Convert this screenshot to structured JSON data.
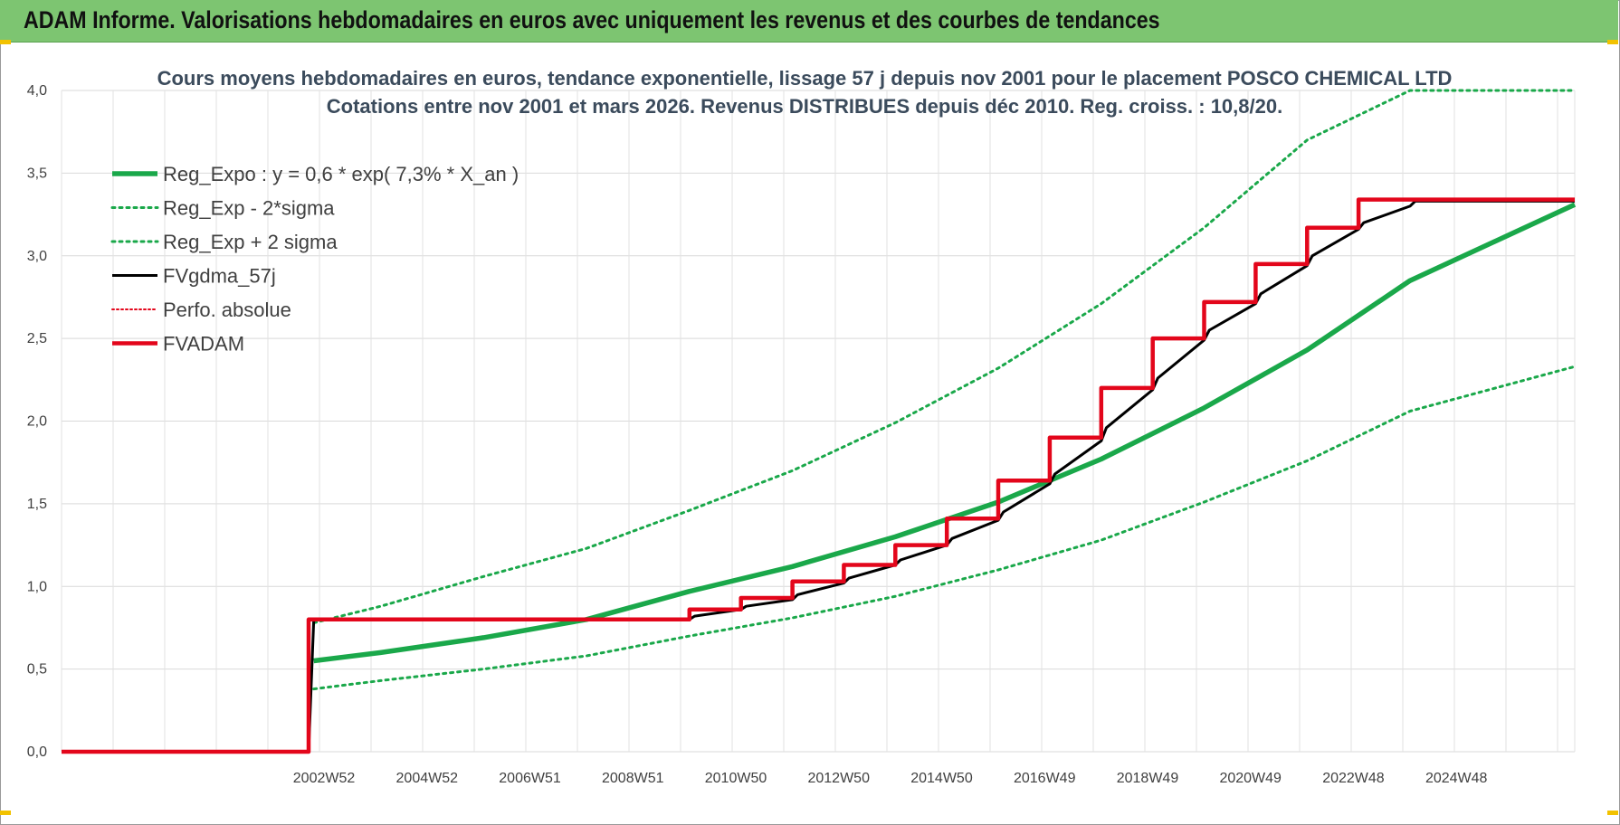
{
  "header": {
    "title": "ADAM Informe. Valorisations hebdomadaires en euros avec uniquement les revenus et des courbes de tendances"
  },
  "colors": {
    "header_bg": "#7dc571",
    "trend_green": "#1aa84a",
    "adam_red": "#e3061b",
    "fv_black": "#000000",
    "perfo_red": "#e3061b"
  },
  "chart_data": {
    "type": "line",
    "title": "Cours moyens hebdomadaires en euros, tendance exponentielle, lissage 57 j depuis nov 2001 pour le placement POSCO CHEMICAL LTD",
    "subtitle": "Cotations entre nov 2001 et mars 2026. Revenus DISTRIBUES depuis déc 2010.  Reg. croiss. : 10,8/20.",
    "xlabel": "",
    "ylabel": "",
    "ylim": [
      0,
      4
    ],
    "y_ticks": [
      "0,0",
      "0,5",
      "1,0",
      "1,5",
      "2,0",
      "2,5",
      "3,0",
      "3,5",
      "4,0"
    ],
    "x_ticks": [
      "2002W52",
      "2004W52",
      "2006W51",
      "2008W51",
      "2010W50",
      "2012W50",
      "2014W50",
      "2016W49",
      "2018W49",
      "2020W49",
      "2022W48",
      "2024W48"
    ],
    "xlim": [
      1997.8,
      2027.2
    ],
    "grid": true,
    "legend_position": "top-left",
    "legend": [
      {
        "label": "Reg_Expo : y = 0,6 * exp( 7,3% *  X_an )",
        "style": "solid-thick",
        "color": "#1aa84a"
      },
      {
        "label": "Reg_Exp - 2*sigma",
        "style": "dotted",
        "color": "#1aa84a"
      },
      {
        "label": "Reg_Exp + 2 sigma",
        "style": "dotted",
        "color": "#1aa84a"
      },
      {
        "label": "FVgdma_57j",
        "style": "solid",
        "color": "#000000"
      },
      {
        "label": "Perfo. absolue",
        "style": "dotted",
        "color": "#e3061b"
      },
      {
        "label": "FVADAM",
        "style": "solid-thick",
        "color": "#e3061b"
      }
    ],
    "series": [
      {
        "name": "Reg_Expo : y = 0,6 * exp( 7,3% *  X_an )",
        "x": [
          2002.7,
          2004,
          2006,
          2008,
          2010,
          2012,
          2014,
          2016,
          2018,
          2020,
          2022,
          2024,
          2027.2
        ],
        "y": [
          0.55,
          0.6,
          0.69,
          0.8,
          0.97,
          1.12,
          1.3,
          1.51,
          1.77,
          2.08,
          2.43,
          2.85,
          3.31
        ]
      },
      {
        "name": "Reg_Exp - 2*sigma",
        "x": [
          2002.7,
          2004,
          2006,
          2008,
          2010,
          2012,
          2014,
          2016,
          2018,
          2020,
          2022,
          2024,
          2027.2
        ],
        "y": [
          0.38,
          0.43,
          0.5,
          0.58,
          0.7,
          0.81,
          0.94,
          1.1,
          1.28,
          1.51,
          1.76,
          2.06,
          2.33
        ]
      },
      {
        "name": "Reg_Exp + 2 sigma",
        "x": [
          2002.7,
          2004,
          2006,
          2008,
          2010,
          2012,
          2014,
          2016,
          2018,
          2020,
          2022,
          2024,
          2025,
          2027.2
        ],
        "y": [
          0.78,
          0.88,
          1.06,
          1.23,
          1.46,
          1.7,
          1.99,
          2.32,
          2.71,
          3.17,
          3.7,
          4.0,
          4.0,
          4.0
        ]
      },
      {
        "name": "FVgdma_57j",
        "x": [
          1997.8,
          2002.6,
          2002.7,
          2010.0,
          2010.1,
          2011.0,
          2011.1,
          2012.0,
          2012.1,
          2013.0,
          2013.1,
          2014.0,
          2014.1,
          2015.0,
          2015.1,
          2016.0,
          2016.1,
          2017.0,
          2017.1,
          2018.0,
          2018.1,
          2019.0,
          2019.1,
          2020.0,
          2020.1,
          2021.0,
          2021.1,
          2022.0,
          2022.1,
          2023.0,
          2023.1,
          2024.0,
          2024.1,
          2027.2
        ],
        "y": [
          0,
          0,
          0.8,
          0.8,
          0.82,
          0.86,
          0.88,
          0.92,
          0.95,
          1.02,
          1.05,
          1.13,
          1.16,
          1.25,
          1.29,
          1.4,
          1.45,
          1.62,
          1.68,
          1.88,
          1.96,
          2.19,
          2.26,
          2.49,
          2.55,
          2.71,
          2.77,
          2.94,
          3.0,
          3.16,
          3.2,
          3.3,
          3.33,
          3.33
        ]
      },
      {
        "name": "FVADAM",
        "x": [
          1997.8,
          2002.6,
          2002.6,
          2010.0,
          2010.0,
          2011.0,
          2011.0,
          2012.0,
          2012.0,
          2013.0,
          2013.0,
          2014.0,
          2014.0,
          2015.0,
          2015.0,
          2016.0,
          2016.0,
          2017.0,
          2017.0,
          2018.0,
          2018.0,
          2019.0,
          2019.0,
          2020.0,
          2020.0,
          2021.0,
          2021.0,
          2022.0,
          2022.0,
          2023.0,
          2023.0,
          2024.0,
          2024.0,
          2027.2
        ],
        "y": [
          0,
          0,
          0.8,
          0.8,
          0.86,
          0.86,
          0.93,
          0.93,
          1.03,
          1.03,
          1.13,
          1.13,
          1.25,
          1.25,
          1.41,
          1.41,
          1.64,
          1.64,
          1.9,
          1.9,
          2.2,
          2.2,
          2.5,
          2.5,
          2.72,
          2.72,
          2.95,
          2.95,
          3.17,
          3.17,
          3.34,
          3.34,
          3.34,
          3.34
        ]
      }
    ]
  }
}
